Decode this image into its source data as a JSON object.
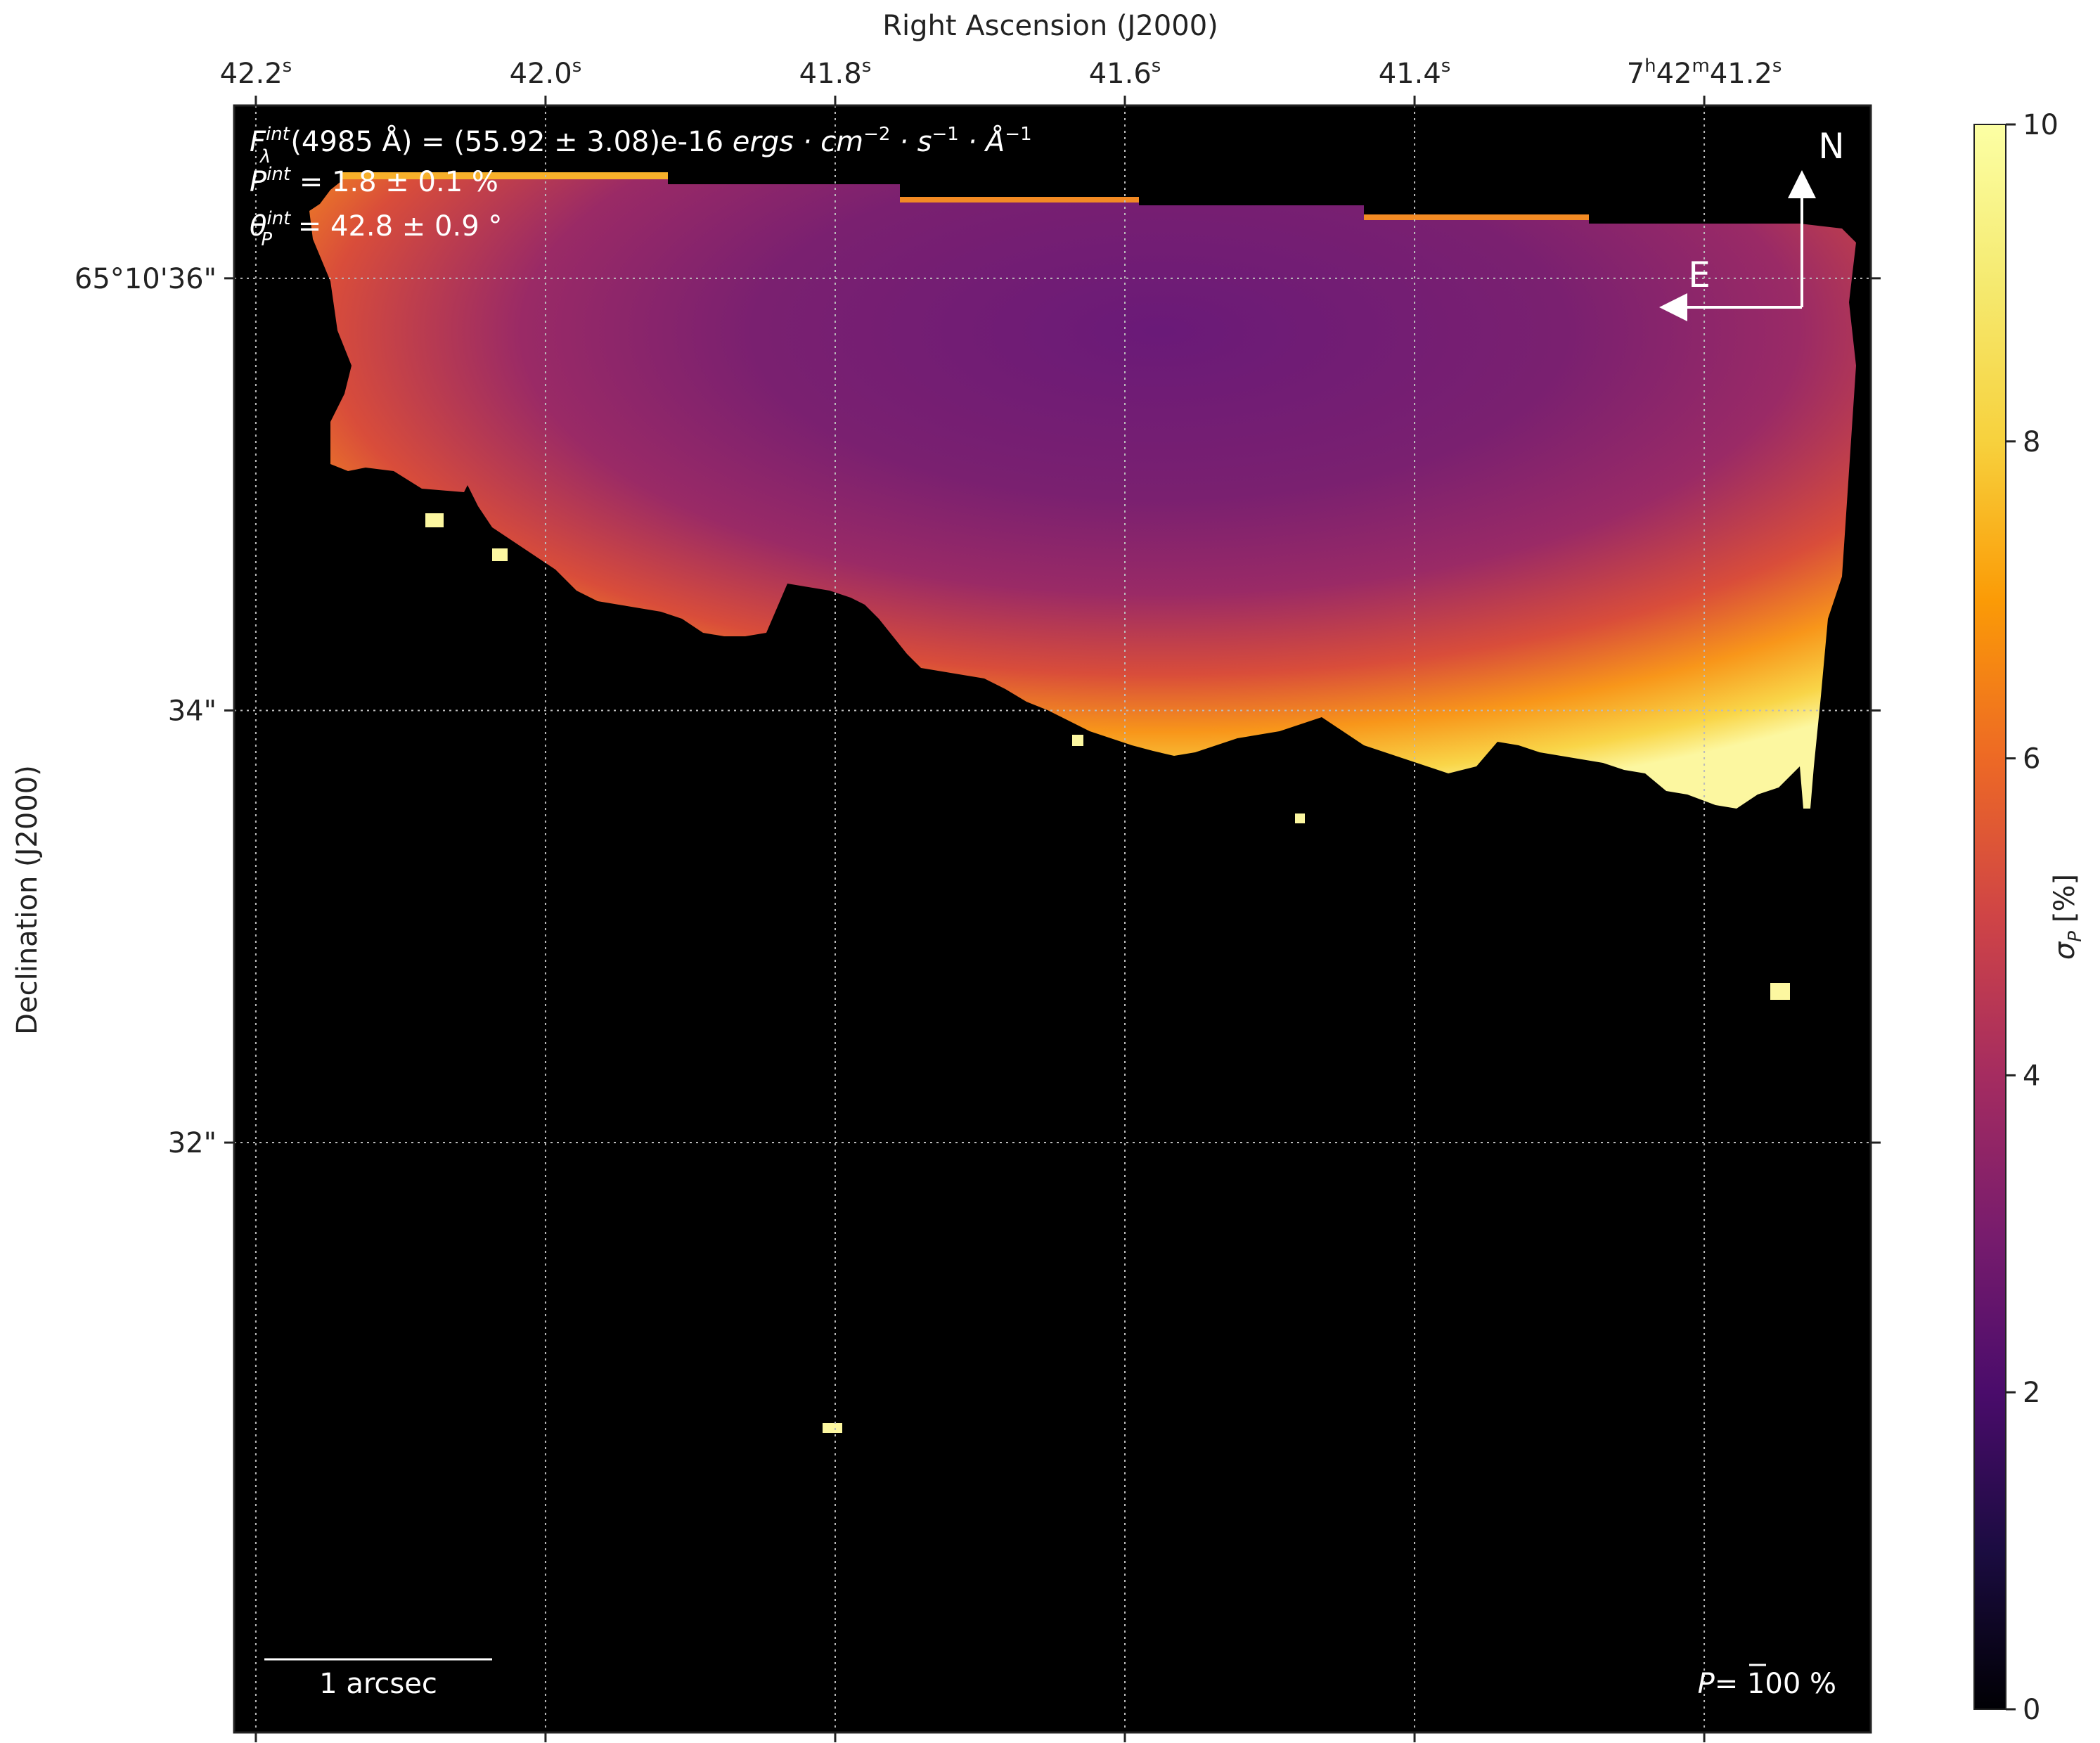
{
  "chart_data": {
    "type": "heatmap",
    "title": "",
    "xlabel": "Right Ascension (J2000)",
    "ylabel": "Declination (J2000)",
    "x_ticks": [
      {
        "value": 42.2,
        "label": "42.2",
        "sup": "s",
        "prefix": "",
        "prefix_sup": ""
      },
      {
        "value": 42.0,
        "label": "42.0",
        "sup": "s",
        "prefix": "",
        "prefix_sup": ""
      },
      {
        "value": 41.8,
        "label": "41.8",
        "sup": "s",
        "prefix": "",
        "prefix_sup": ""
      },
      {
        "value": 41.6,
        "label": "41.6",
        "sup": "s",
        "prefix": "",
        "prefix_sup": ""
      },
      {
        "value": 41.4,
        "label": "41.4",
        "sup": "s",
        "prefix": "",
        "prefix_sup": ""
      },
      {
        "value": 41.2,
        "label": "41.2",
        "sup": "s",
        "prefix": "7h42m",
        "prefix_sup": ""
      }
    ],
    "x_tick_prefix": {
      "h": "7",
      "h_sup": "h",
      "m": "42",
      "m_sup": "m"
    },
    "y_ticks": [
      {
        "value": 36,
        "label": "65°10'36\""
      },
      {
        "value": 34,
        "label": "34\""
      },
      {
        "value": 32,
        "label": "32\""
      }
    ],
    "x_range": [
      42.215,
      41.085
    ],
    "y_range": [
      29.27,
      36.8
    ],
    "grid": true,
    "colorbar": {
      "label_symbol": "σ",
      "label_sub": "P",
      "label_unit": "[%]",
      "vmin": 0,
      "vmax": 10,
      "ticks": [
        "0",
        "2",
        "4",
        "6",
        "8",
        "10"
      ],
      "colormap": "inferno"
    },
    "annotations": {
      "flux_sym": "F",
      "flux_sup": "int",
      "flux_sub": "λ",
      "flux_rest": "(4985 Å) = (55.92 ± 3.08)e-16 ",
      "flux_units": "ergs · cm",
      "flux_exp1": "−2",
      "flux_units2": " · s",
      "flux_exp2": "−1",
      "flux_units3": " · Å",
      "flux_exp3": "−1",
      "pol_sym": "P",
      "pol_sup": "int",
      "pol_rest": " = 1.8 ± 0.1 %",
      "ang_sym": "θ",
      "ang_sup": "int",
      "ang_sub": "P",
      "ang_rest": " = 42.8 ± 0.9 °",
      "scalebar_label": "1 arcsec",
      "vector_scale_sym": "P",
      "vector_scale_rest": "= 100 %",
      "compass_north": "N",
      "compass_east": "E"
    },
    "region": {
      "description_units": "RA seconds / Dec arcsec offsets",
      "colorscale_inner_value": 3.3,
      "colorscale_edge_value": 10
    }
  },
  "colors": {
    "background": "#000000",
    "grid": "#bbbbbb",
    "text_dark": "#222222",
    "text_light": "#ffffff"
  }
}
